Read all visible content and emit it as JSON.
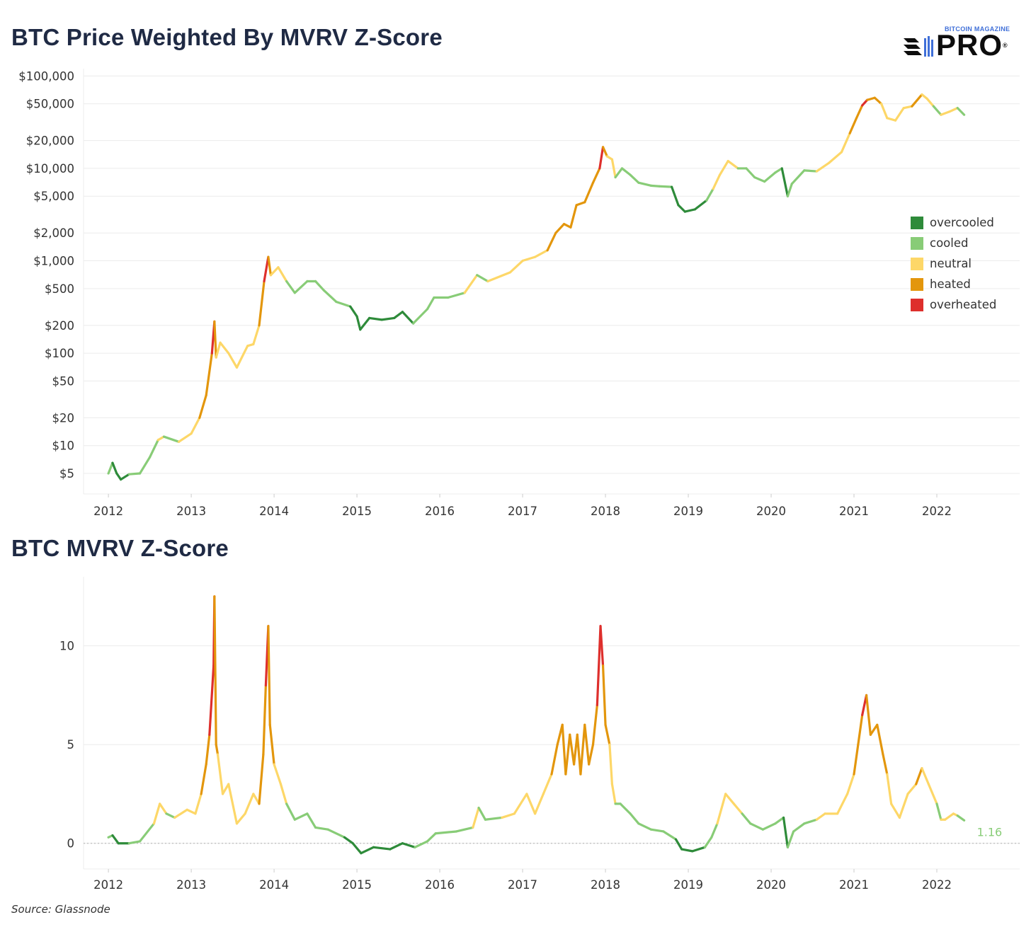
{
  "titles": {
    "top": "BTC Price Weighted By MVRV Z-Score",
    "bottom": "BTC MVRV Z-Score"
  },
  "logo": {
    "top_text": "BITCOIN MAGAZINE",
    "main_text": "PRO",
    "mark": "®"
  },
  "source": "Source: Glassnode",
  "colors": {
    "overcooled": "#2e8b3a",
    "cooled": "#88cc77",
    "neutral": "#fdd768",
    "heated": "#e3960c",
    "overheated": "#de2f2c",
    "grid": "#ececec",
    "zero_line": "#b0b0b0",
    "text": "#333333",
    "title": "#1f2a44"
  },
  "legend": [
    {
      "key": "overcooled",
      "label": "overcooled"
    },
    {
      "key": "cooled",
      "label": "cooled"
    },
    {
      "key": "neutral",
      "label": "neutral"
    },
    {
      "key": "heated",
      "label": "heated"
    },
    {
      "key": "overheated",
      "label": "overheated"
    }
  ],
  "chart_data": [
    {
      "type": "line",
      "title": "BTC Price Weighted By MVRV Z-Score",
      "y_scale": "log",
      "xlim": [
        2011.7,
        2023.0
      ],
      "ylim": [
        3,
        120000
      ],
      "x_ticks": [
        2012,
        2013,
        2014,
        2015,
        2016,
        2017,
        2018,
        2019,
        2020,
        2021,
        2022
      ],
      "x_tick_labels": [
        "2012",
        "2013",
        "2014",
        "2015",
        "2016",
        "2017",
        "2018",
        "2019",
        "2020",
        "2021",
        "2022"
      ],
      "y_ticks": [
        5,
        10,
        20,
        50,
        100,
        200,
        500,
        1000,
        2000,
        5000,
        10000,
        20000,
        50000,
        100000
      ],
      "y_tick_labels": [
        "$5",
        "$10",
        "$20",
        "$50",
        "$100",
        "$200",
        "$500",
        "$1,000",
        "$2,000",
        "$5,000",
        "$10,000",
        "$20,000",
        "$50,000",
        "$100,000"
      ],
      "grid": true,
      "legend_position": "right",
      "color_by": "MVRV Z-Score zone",
      "points": [
        [
          2012.0,
          5.0,
          "cooled"
        ],
        [
          2012.05,
          6.5,
          "cooled"
        ],
        [
          2012.1,
          5.0,
          "overcooled"
        ],
        [
          2012.15,
          4.3,
          "overcooled"
        ],
        [
          2012.25,
          4.9,
          "overcooled"
        ],
        [
          2012.38,
          5.0,
          "cooled"
        ],
        [
          2012.5,
          7.5,
          "cooled"
        ],
        [
          2012.6,
          11.5,
          "cooled"
        ],
        [
          2012.67,
          12.5,
          "neutral"
        ],
        [
          2012.85,
          11.0,
          "cooled"
        ],
        [
          2013.0,
          13.5,
          "neutral"
        ],
        [
          2013.1,
          20.0,
          "neutral"
        ],
        [
          2013.18,
          35.0,
          "heated"
        ],
        [
          2013.25,
          100.0,
          "heated"
        ],
        [
          2013.28,
          220.0,
          "overheated"
        ],
        [
          2013.3,
          90.0,
          "heated"
        ],
        [
          2013.35,
          130.0,
          "neutral"
        ],
        [
          2013.45,
          100.0,
          "neutral"
        ],
        [
          2013.55,
          70.0,
          "neutral"
        ],
        [
          2013.68,
          120.0,
          "neutral"
        ],
        [
          2013.75,
          125.0,
          "neutral"
        ],
        [
          2013.82,
          200.0,
          "neutral"
        ],
        [
          2013.88,
          600.0,
          "heated"
        ],
        [
          2013.93,
          1100.0,
          "overheated"
        ],
        [
          2013.96,
          700.0,
          "heated"
        ],
        [
          2014.05,
          850.0,
          "neutral"
        ],
        [
          2014.15,
          600.0,
          "neutral"
        ],
        [
          2014.25,
          450.0,
          "cooled"
        ],
        [
          2014.4,
          600.0,
          "cooled"
        ],
        [
          2014.5,
          600.0,
          "cooled"
        ],
        [
          2014.6,
          480.0,
          "cooled"
        ],
        [
          2014.75,
          360.0,
          "cooled"
        ],
        [
          2014.92,
          320.0,
          "cooled"
        ],
        [
          2015.0,
          250.0,
          "overcooled"
        ],
        [
          2015.04,
          180.0,
          "overcooled"
        ],
        [
          2015.15,
          240.0,
          "overcooled"
        ],
        [
          2015.3,
          230.0,
          "overcooled"
        ],
        [
          2015.45,
          240.0,
          "overcooled"
        ],
        [
          2015.55,
          280.0,
          "overcooled"
        ],
        [
          2015.68,
          210.0,
          "overcooled"
        ],
        [
          2015.85,
          300.0,
          "cooled"
        ],
        [
          2015.93,
          400.0,
          "cooled"
        ],
        [
          2016.1,
          400.0,
          "cooled"
        ],
        [
          2016.3,
          450.0,
          "cooled"
        ],
        [
          2016.45,
          700.0,
          "neutral"
        ],
        [
          2016.58,
          600.0,
          "cooled"
        ],
        [
          2016.85,
          750.0,
          "neutral"
        ],
        [
          2017.0,
          1000.0,
          "neutral"
        ],
        [
          2017.15,
          1100.0,
          "neutral"
        ],
        [
          2017.3,
          1300.0,
          "neutral"
        ],
        [
          2017.4,
          2000.0,
          "heated"
        ],
        [
          2017.5,
          2500.0,
          "heated"
        ],
        [
          2017.58,
          2300.0,
          "heated"
        ],
        [
          2017.65,
          4000.0,
          "heated"
        ],
        [
          2017.75,
          4300.0,
          "heated"
        ],
        [
          2017.85,
          7000.0,
          "heated"
        ],
        [
          2017.93,
          10000.0,
          "heated"
        ],
        [
          2017.97,
          17000.0,
          "overheated"
        ],
        [
          2018.02,
          13500.0,
          "heated"
        ],
        [
          2018.08,
          12500.0,
          "neutral"
        ],
        [
          2018.12,
          8000.0,
          "neutral"
        ],
        [
          2018.2,
          10000.0,
          "cooled"
        ],
        [
          2018.3,
          8500.0,
          "cooled"
        ],
        [
          2018.4,
          7000.0,
          "cooled"
        ],
        [
          2018.55,
          6500.0,
          "cooled"
        ],
        [
          2018.65,
          6400.0,
          "cooled"
        ],
        [
          2018.8,
          6300.0,
          "cooled"
        ],
        [
          2018.88,
          4000.0,
          "overcooled"
        ],
        [
          2018.96,
          3400.0,
          "overcooled"
        ],
        [
          2019.08,
          3600.0,
          "overcooled"
        ],
        [
          2019.22,
          4500.0,
          "overcooled"
        ],
        [
          2019.3,
          6000.0,
          "cooled"
        ],
        [
          2019.38,
          8500.0,
          "neutral"
        ],
        [
          2019.48,
          12000.0,
          "neutral"
        ],
        [
          2019.6,
          10000.0,
          "neutral"
        ],
        [
          2019.7,
          10000.0,
          "cooled"
        ],
        [
          2019.8,
          8000.0,
          "cooled"
        ],
        [
          2019.92,
          7200.0,
          "cooled"
        ],
        [
          2020.05,
          9000.0,
          "cooled"
        ],
        [
          2020.13,
          10000.0,
          "cooled"
        ],
        [
          2020.2,
          5000.0,
          "overcooled"
        ],
        [
          2020.25,
          6800.0,
          "cooled"
        ],
        [
          2020.4,
          9500.0,
          "cooled"
        ],
        [
          2020.55,
          9300.0,
          "cooled"
        ],
        [
          2020.7,
          11500.0,
          "neutral"
        ],
        [
          2020.85,
          15000.0,
          "neutral"
        ],
        [
          2020.95,
          24000.0,
          "neutral"
        ],
        [
          2021.03,
          35000.0,
          "heated"
        ],
        [
          2021.1,
          48000.0,
          "heated"
        ],
        [
          2021.16,
          55000.0,
          "overheated"
        ],
        [
          2021.25,
          58000.0,
          "heated"
        ],
        [
          2021.33,
          50000.0,
          "heated"
        ],
        [
          2021.4,
          35000.0,
          "neutral"
        ],
        [
          2021.5,
          33000.0,
          "neutral"
        ],
        [
          2021.6,
          45000.0,
          "neutral"
        ],
        [
          2021.7,
          47000.0,
          "neutral"
        ],
        [
          2021.82,
          63000.0,
          "heated"
        ],
        [
          2021.88,
          57000.0,
          "neutral"
        ],
        [
          2021.96,
          47000.0,
          "neutral"
        ],
        [
          2022.05,
          38000.0,
          "cooled"
        ],
        [
          2022.15,
          41000.0,
          "neutral"
        ],
        [
          2022.25,
          45000.0,
          "neutral"
        ],
        [
          2022.33,
          38000.0,
          "cooled"
        ]
      ]
    },
    {
      "type": "line",
      "title": "BTC MVRV Z-Score",
      "xlim": [
        2011.7,
        2023.0
      ],
      "ylim": [
        -1.3,
        13.5
      ],
      "x_ticks": [
        2012,
        2013,
        2014,
        2015,
        2016,
        2017,
        2018,
        2019,
        2020,
        2021,
        2022
      ],
      "x_tick_labels": [
        "2012",
        "2013",
        "2014",
        "2015",
        "2016",
        "2017",
        "2018",
        "2019",
        "2020",
        "2021",
        "2022"
      ],
      "y_ticks": [
        0,
        5,
        10
      ],
      "y_tick_labels": [
        "0",
        "5",
        "10"
      ],
      "grid": true,
      "zero_line": "dotted",
      "last_value_label": "1.16",
      "color_by": "MVRV Z-Score zone",
      "points": [
        [
          2012.0,
          0.3,
          "cooled"
        ],
        [
          2012.05,
          0.4,
          "cooled"
        ],
        [
          2012.12,
          0.0,
          "overcooled"
        ],
        [
          2012.25,
          0.0,
          "overcooled"
        ],
        [
          2012.38,
          0.1,
          "cooled"
        ],
        [
          2012.55,
          1.0,
          "cooled"
        ],
        [
          2012.62,
          2.0,
          "neutral"
        ],
        [
          2012.7,
          1.5,
          "neutral"
        ],
        [
          2012.8,
          1.3,
          "cooled"
        ],
        [
          2012.95,
          1.7,
          "neutral"
        ],
        [
          2013.05,
          1.5,
          "neutral"
        ],
        [
          2013.12,
          2.5,
          "neutral"
        ],
        [
          2013.18,
          4.0,
          "heated"
        ],
        [
          2013.22,
          5.5,
          "heated"
        ],
        [
          2013.27,
          9.0,
          "overheated"
        ],
        [
          2013.28,
          12.5,
          "overheated"
        ],
        [
          2013.3,
          5.0,
          "heated"
        ],
        [
          2013.32,
          4.5,
          "heated"
        ],
        [
          2013.38,
          2.5,
          "neutral"
        ],
        [
          2013.45,
          3.0,
          "neutral"
        ],
        [
          2013.55,
          1.0,
          "neutral"
        ],
        [
          2013.65,
          1.5,
          "neutral"
        ],
        [
          2013.75,
          2.5,
          "neutral"
        ],
        [
          2013.82,
          2.0,
          "neutral"
        ],
        [
          2013.87,
          4.5,
          "heated"
        ],
        [
          2013.9,
          8.0,
          "heated"
        ],
        [
          2013.93,
          11.0,
          "overheated"
        ],
        [
          2013.95,
          6.0,
          "heated"
        ],
        [
          2014.0,
          4.0,
          "heated"
        ],
        [
          2014.08,
          3.0,
          "neutral"
        ],
        [
          2014.15,
          2.0,
          "neutral"
        ],
        [
          2014.25,
          1.2,
          "cooled"
        ],
        [
          2014.4,
          1.5,
          "cooled"
        ],
        [
          2014.5,
          0.8,
          "cooled"
        ],
        [
          2014.65,
          0.7,
          "cooled"
        ],
        [
          2014.85,
          0.3,
          "cooled"
        ],
        [
          2014.95,
          0.0,
          "overcooled"
        ],
        [
          2015.05,
          -0.5,
          "overcooled"
        ],
        [
          2015.2,
          -0.2,
          "overcooled"
        ],
        [
          2015.4,
          -0.3,
          "overcooled"
        ],
        [
          2015.55,
          0.0,
          "overcooled"
        ],
        [
          2015.7,
          -0.2,
          "overcooled"
        ],
        [
          2015.85,
          0.1,
          "cooled"
        ],
        [
          2015.95,
          0.5,
          "cooled"
        ],
        [
          2016.2,
          0.6,
          "cooled"
        ],
        [
          2016.4,
          0.8,
          "cooled"
        ],
        [
          2016.47,
          1.8,
          "neutral"
        ],
        [
          2016.55,
          1.2,
          "cooled"
        ],
        [
          2016.75,
          1.3,
          "cooled"
        ],
        [
          2016.9,
          1.5,
          "neutral"
        ],
        [
          2017.05,
          2.5,
          "neutral"
        ],
        [
          2017.15,
          1.5,
          "neutral"
        ],
        [
          2017.25,
          2.5,
          "neutral"
        ],
        [
          2017.35,
          3.5,
          "neutral"
        ],
        [
          2017.42,
          5.0,
          "heated"
        ],
        [
          2017.48,
          6.0,
          "heated"
        ],
        [
          2017.52,
          3.5,
          "heated"
        ],
        [
          2017.57,
          5.5,
          "heated"
        ],
        [
          2017.62,
          4.0,
          "heated"
        ],
        [
          2017.66,
          5.5,
          "heated"
        ],
        [
          2017.7,
          3.5,
          "heated"
        ],
        [
          2017.75,
          6.0,
          "heated"
        ],
        [
          2017.8,
          4.0,
          "heated"
        ],
        [
          2017.85,
          5.0,
          "heated"
        ],
        [
          2017.9,
          7.0,
          "heated"
        ],
        [
          2017.94,
          11.0,
          "overheated"
        ],
        [
          2017.97,
          9.0,
          "overheated"
        ],
        [
          2018.0,
          6.0,
          "heated"
        ],
        [
          2018.05,
          5.0,
          "heated"
        ],
        [
          2018.08,
          3.0,
          "neutral"
        ],
        [
          2018.12,
          2.0,
          "neutral"
        ],
        [
          2018.18,
          2.0,
          "cooled"
        ],
        [
          2018.3,
          1.5,
          "cooled"
        ],
        [
          2018.4,
          1.0,
          "cooled"
        ],
        [
          2018.55,
          0.7,
          "cooled"
        ],
        [
          2018.7,
          0.6,
          "cooled"
        ],
        [
          2018.85,
          0.2,
          "cooled"
        ],
        [
          2018.92,
          -0.3,
          "overcooled"
        ],
        [
          2019.05,
          -0.4,
          "overcooled"
        ],
        [
          2019.2,
          -0.2,
          "overcooled"
        ],
        [
          2019.28,
          0.3,
          "cooled"
        ],
        [
          2019.35,
          1.0,
          "cooled"
        ],
        [
          2019.45,
          2.5,
          "neutral"
        ],
        [
          2019.55,
          2.0,
          "neutral"
        ],
        [
          2019.65,
          1.5,
          "neutral"
        ],
        [
          2019.75,
          1.0,
          "cooled"
        ],
        [
          2019.9,
          0.7,
          "cooled"
        ],
        [
          2020.05,
          1.0,
          "cooled"
        ],
        [
          2020.15,
          1.3,
          "cooled"
        ],
        [
          2020.2,
          -0.2,
          "overcooled"
        ],
        [
          2020.27,
          0.6,
          "cooled"
        ],
        [
          2020.4,
          1.0,
          "cooled"
        ],
        [
          2020.55,
          1.2,
          "cooled"
        ],
        [
          2020.65,
          1.5,
          "neutral"
        ],
        [
          2020.8,
          1.5,
          "neutral"
        ],
        [
          2020.92,
          2.5,
          "neutral"
        ],
        [
          2021.0,
          3.5,
          "neutral"
        ],
        [
          2021.05,
          5.0,
          "heated"
        ],
        [
          2021.1,
          6.5,
          "heated"
        ],
        [
          2021.15,
          7.5,
          "overheated"
        ],
        [
          2021.2,
          5.5,
          "heated"
        ],
        [
          2021.28,
          6.0,
          "heated"
        ],
        [
          2021.35,
          4.5,
          "heated"
        ],
        [
          2021.4,
          3.5,
          "heated"
        ],
        [
          2021.45,
          2.0,
          "neutral"
        ],
        [
          2021.55,
          1.3,
          "neutral"
        ],
        [
          2021.65,
          2.5,
          "neutral"
        ],
        [
          2021.75,
          3.0,
          "neutral"
        ],
        [
          2021.82,
          3.8,
          "heated"
        ],
        [
          2021.9,
          3.0,
          "neutral"
        ],
        [
          2022.0,
          2.0,
          "neutral"
        ],
        [
          2022.05,
          1.2,
          "cooled"
        ],
        [
          2022.1,
          1.2,
          "neutral"
        ],
        [
          2022.2,
          1.5,
          "neutral"
        ],
        [
          2022.25,
          1.4,
          "neutral"
        ],
        [
          2022.33,
          1.16,
          "cooled"
        ]
      ]
    }
  ]
}
